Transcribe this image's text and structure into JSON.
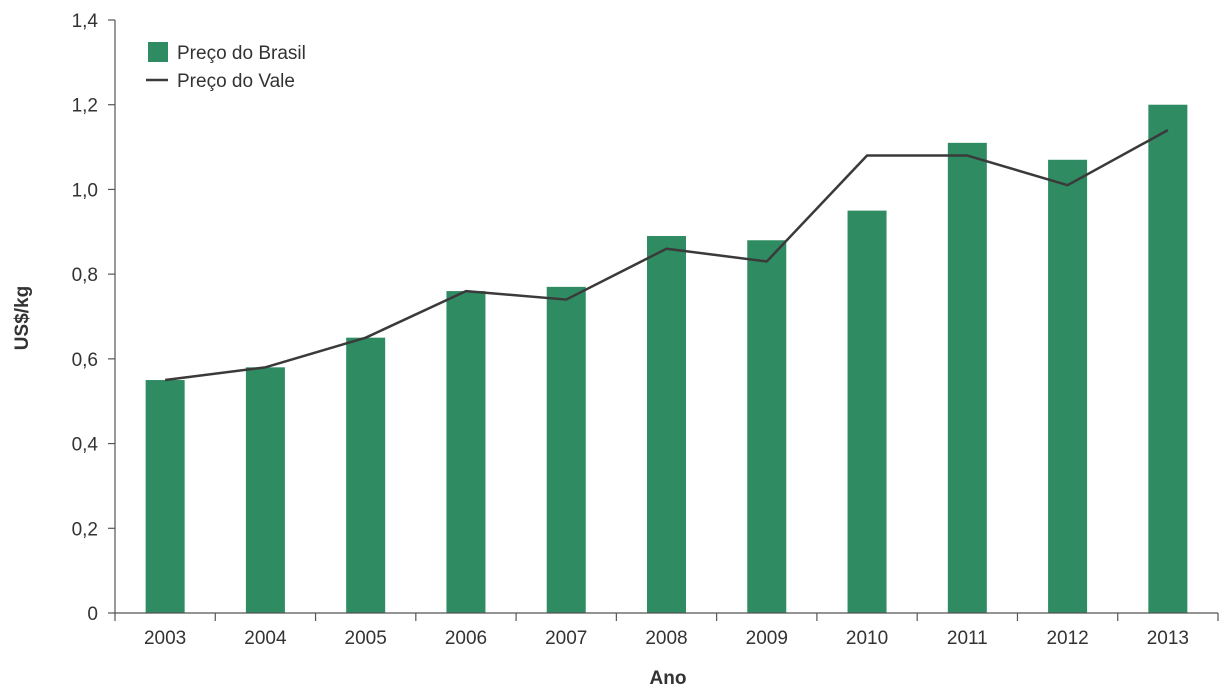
{
  "chart_data": {
    "type": "bar",
    "categories": [
      "2003",
      "2004",
      "2005",
      "2006",
      "2007",
      "2008",
      "2009",
      "2010",
      "2011",
      "2012",
      "2013"
    ],
    "series": [
      {
        "name": "Preço do Brasil",
        "type": "bar",
        "color": "#2e8b62",
        "values": [
          0.55,
          0.58,
          0.65,
          0.76,
          0.77,
          0.89,
          0.88,
          0.95,
          1.11,
          1.07,
          1.2
        ]
      },
      {
        "name": "Preço do Vale",
        "type": "line",
        "color": "#3a3a3a",
        "values": [
          0.55,
          0.58,
          0.65,
          0.76,
          0.74,
          0.86,
          0.83,
          1.08,
          1.08,
          1.01,
          1.14
        ]
      }
    ],
    "xlabel": "Ano",
    "ylabel": "US$/kg",
    "ylim": [
      0,
      1.4
    ],
    "yticks": [
      0,
      0.2,
      0.4,
      0.6,
      0.8,
      1.0,
      1.2,
      1.4
    ],
    "ytick_labels": [
      "0",
      "0,2",
      "0,4",
      "0,6",
      "0,8",
      "1,0",
      "1,2",
      "1,4"
    ],
    "grid": false,
    "legend_position": "top-left"
  }
}
